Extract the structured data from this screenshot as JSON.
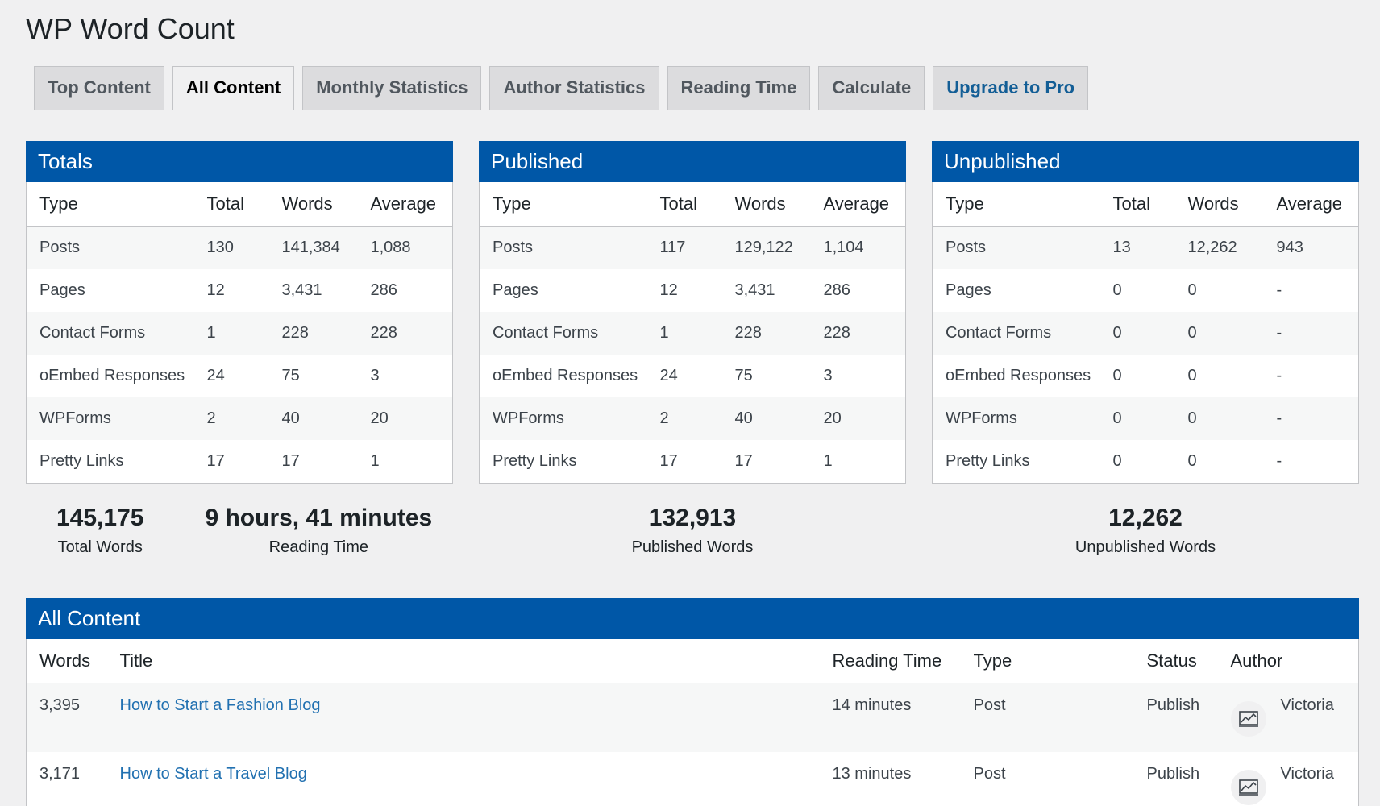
{
  "page_title": "WP Word Count",
  "tabs": [
    {
      "label": "Top Content"
    },
    {
      "label": "All Content"
    },
    {
      "label": "Monthly Statistics"
    },
    {
      "label": "Author Statistics"
    },
    {
      "label": "Reading Time"
    },
    {
      "label": "Calculate"
    },
    {
      "label": "Upgrade to Pro"
    }
  ],
  "active_tab": "All Content",
  "colors": {
    "panel_header": "#0057a7",
    "link": "#2271b1",
    "pro_tab": "#135e96"
  },
  "table_headers": {
    "type": "Type",
    "total": "Total",
    "words": "Words",
    "average": "Average"
  },
  "panels": [
    {
      "title": "Totals",
      "rows": [
        {
          "type": "Posts",
          "total": "130",
          "words": "141,384",
          "average": "1,088"
        },
        {
          "type": "Pages",
          "total": "12",
          "words": "3,431",
          "average": "286"
        },
        {
          "type": "Contact Forms",
          "total": "1",
          "words": "228",
          "average": "228"
        },
        {
          "type": "oEmbed Responses",
          "total": "24",
          "words": "75",
          "average": "3"
        },
        {
          "type": "WPForms",
          "total": "2",
          "words": "40",
          "average": "20"
        },
        {
          "type": "Pretty Links",
          "total": "17",
          "words": "17",
          "average": "1"
        }
      ]
    },
    {
      "title": "Published",
      "rows": [
        {
          "type": "Posts",
          "total": "117",
          "words": "129,122",
          "average": "1,104"
        },
        {
          "type": "Pages",
          "total": "12",
          "words": "3,431",
          "average": "286"
        },
        {
          "type": "Contact Forms",
          "total": "1",
          "words": "228",
          "average": "228"
        },
        {
          "type": "oEmbed Responses",
          "total": "24",
          "words": "75",
          "average": "3"
        },
        {
          "type": "WPForms",
          "total": "2",
          "words": "40",
          "average": "20"
        },
        {
          "type": "Pretty Links",
          "total": "17",
          "words": "17",
          "average": "1"
        }
      ]
    },
    {
      "title": "Unpublished",
      "rows": [
        {
          "type": "Posts",
          "total": "13",
          "words": "12,262",
          "average": "943"
        },
        {
          "type": "Pages",
          "total": "0",
          "words": "0",
          "average": "-"
        },
        {
          "type": "Contact Forms",
          "total": "0",
          "words": "0",
          "average": "-"
        },
        {
          "type": "oEmbed Responses",
          "total": "0",
          "words": "0",
          "average": "-"
        },
        {
          "type": "WPForms",
          "total": "0",
          "words": "0",
          "average": "-"
        },
        {
          "type": "Pretty Links",
          "total": "0",
          "words": "0",
          "average": "-"
        }
      ]
    }
  ],
  "summary": {
    "total_words": {
      "value": "145,175",
      "label": "Total Words"
    },
    "reading_time": {
      "value": "9 hours, 41 minutes",
      "label": "Reading Time"
    },
    "published_words": {
      "value": "132,913",
      "label": "Published Words"
    },
    "unpublished_words": {
      "value": "12,262",
      "label": "Unpublished Words"
    }
  },
  "all_content": {
    "title": "All Content",
    "headers": {
      "words": "Words",
      "title": "Title",
      "reading_time": "Reading Time",
      "type": "Type",
      "status": "Status",
      "author": "Author"
    },
    "rows": [
      {
        "words": "3,395",
        "title": "How to Start a Fashion Blog",
        "reading_time": "14 minutes",
        "type": "Post",
        "status": "Publish",
        "author": "Victoria",
        "avatar_icon": "chart-avatar-icon"
      },
      {
        "words": "3,171",
        "title": "How to Start a Travel Blog",
        "reading_time": "13 minutes",
        "type": "Post",
        "status": "Publish",
        "author": "Victoria",
        "avatar_icon": "chart-avatar-icon"
      }
    ]
  }
}
